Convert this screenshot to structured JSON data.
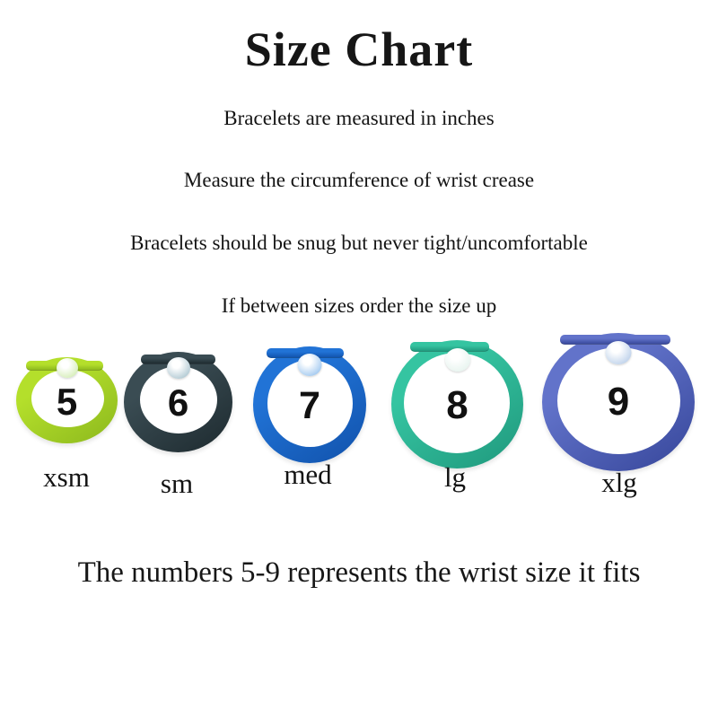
{
  "title": "Size Chart",
  "instructions": [
    "Bracelets are measured in inches",
    "Measure the circumference of wrist crease",
    "Bracelets should be snug but never tight/uncomfortable",
    "If between sizes order the size up"
  ],
  "bracelets": [
    {
      "number": "5",
      "label": "xsm",
      "colors": {
        "band": "#b4df2b",
        "band_dark": "#8fbb1e",
        "button": "#d9efbe"
      }
    },
    {
      "number": "6",
      "label": "sm",
      "colors": {
        "band": "#3a4c53",
        "band_dark": "#1f2c31",
        "button": "#b7cdd6"
      }
    },
    {
      "number": "7",
      "label": "med",
      "colors": {
        "band": "#2173d6",
        "band_dark": "#1254ae",
        "button": "#a9cdf1"
      }
    },
    {
      "number": "8",
      "label": "lg",
      "colors": {
        "band": "#35c4a1",
        "band_dark": "#219b7f",
        "button": "#e9f5f0"
      }
    },
    {
      "number": "9",
      "label": "xlg",
      "colors": {
        "band": "#6273ca",
        "band_dark": "#39499d",
        "button": "#c3d5ec"
      }
    }
  ],
  "footer": "The numbers 5-9 represents the wrist size it fits"
}
